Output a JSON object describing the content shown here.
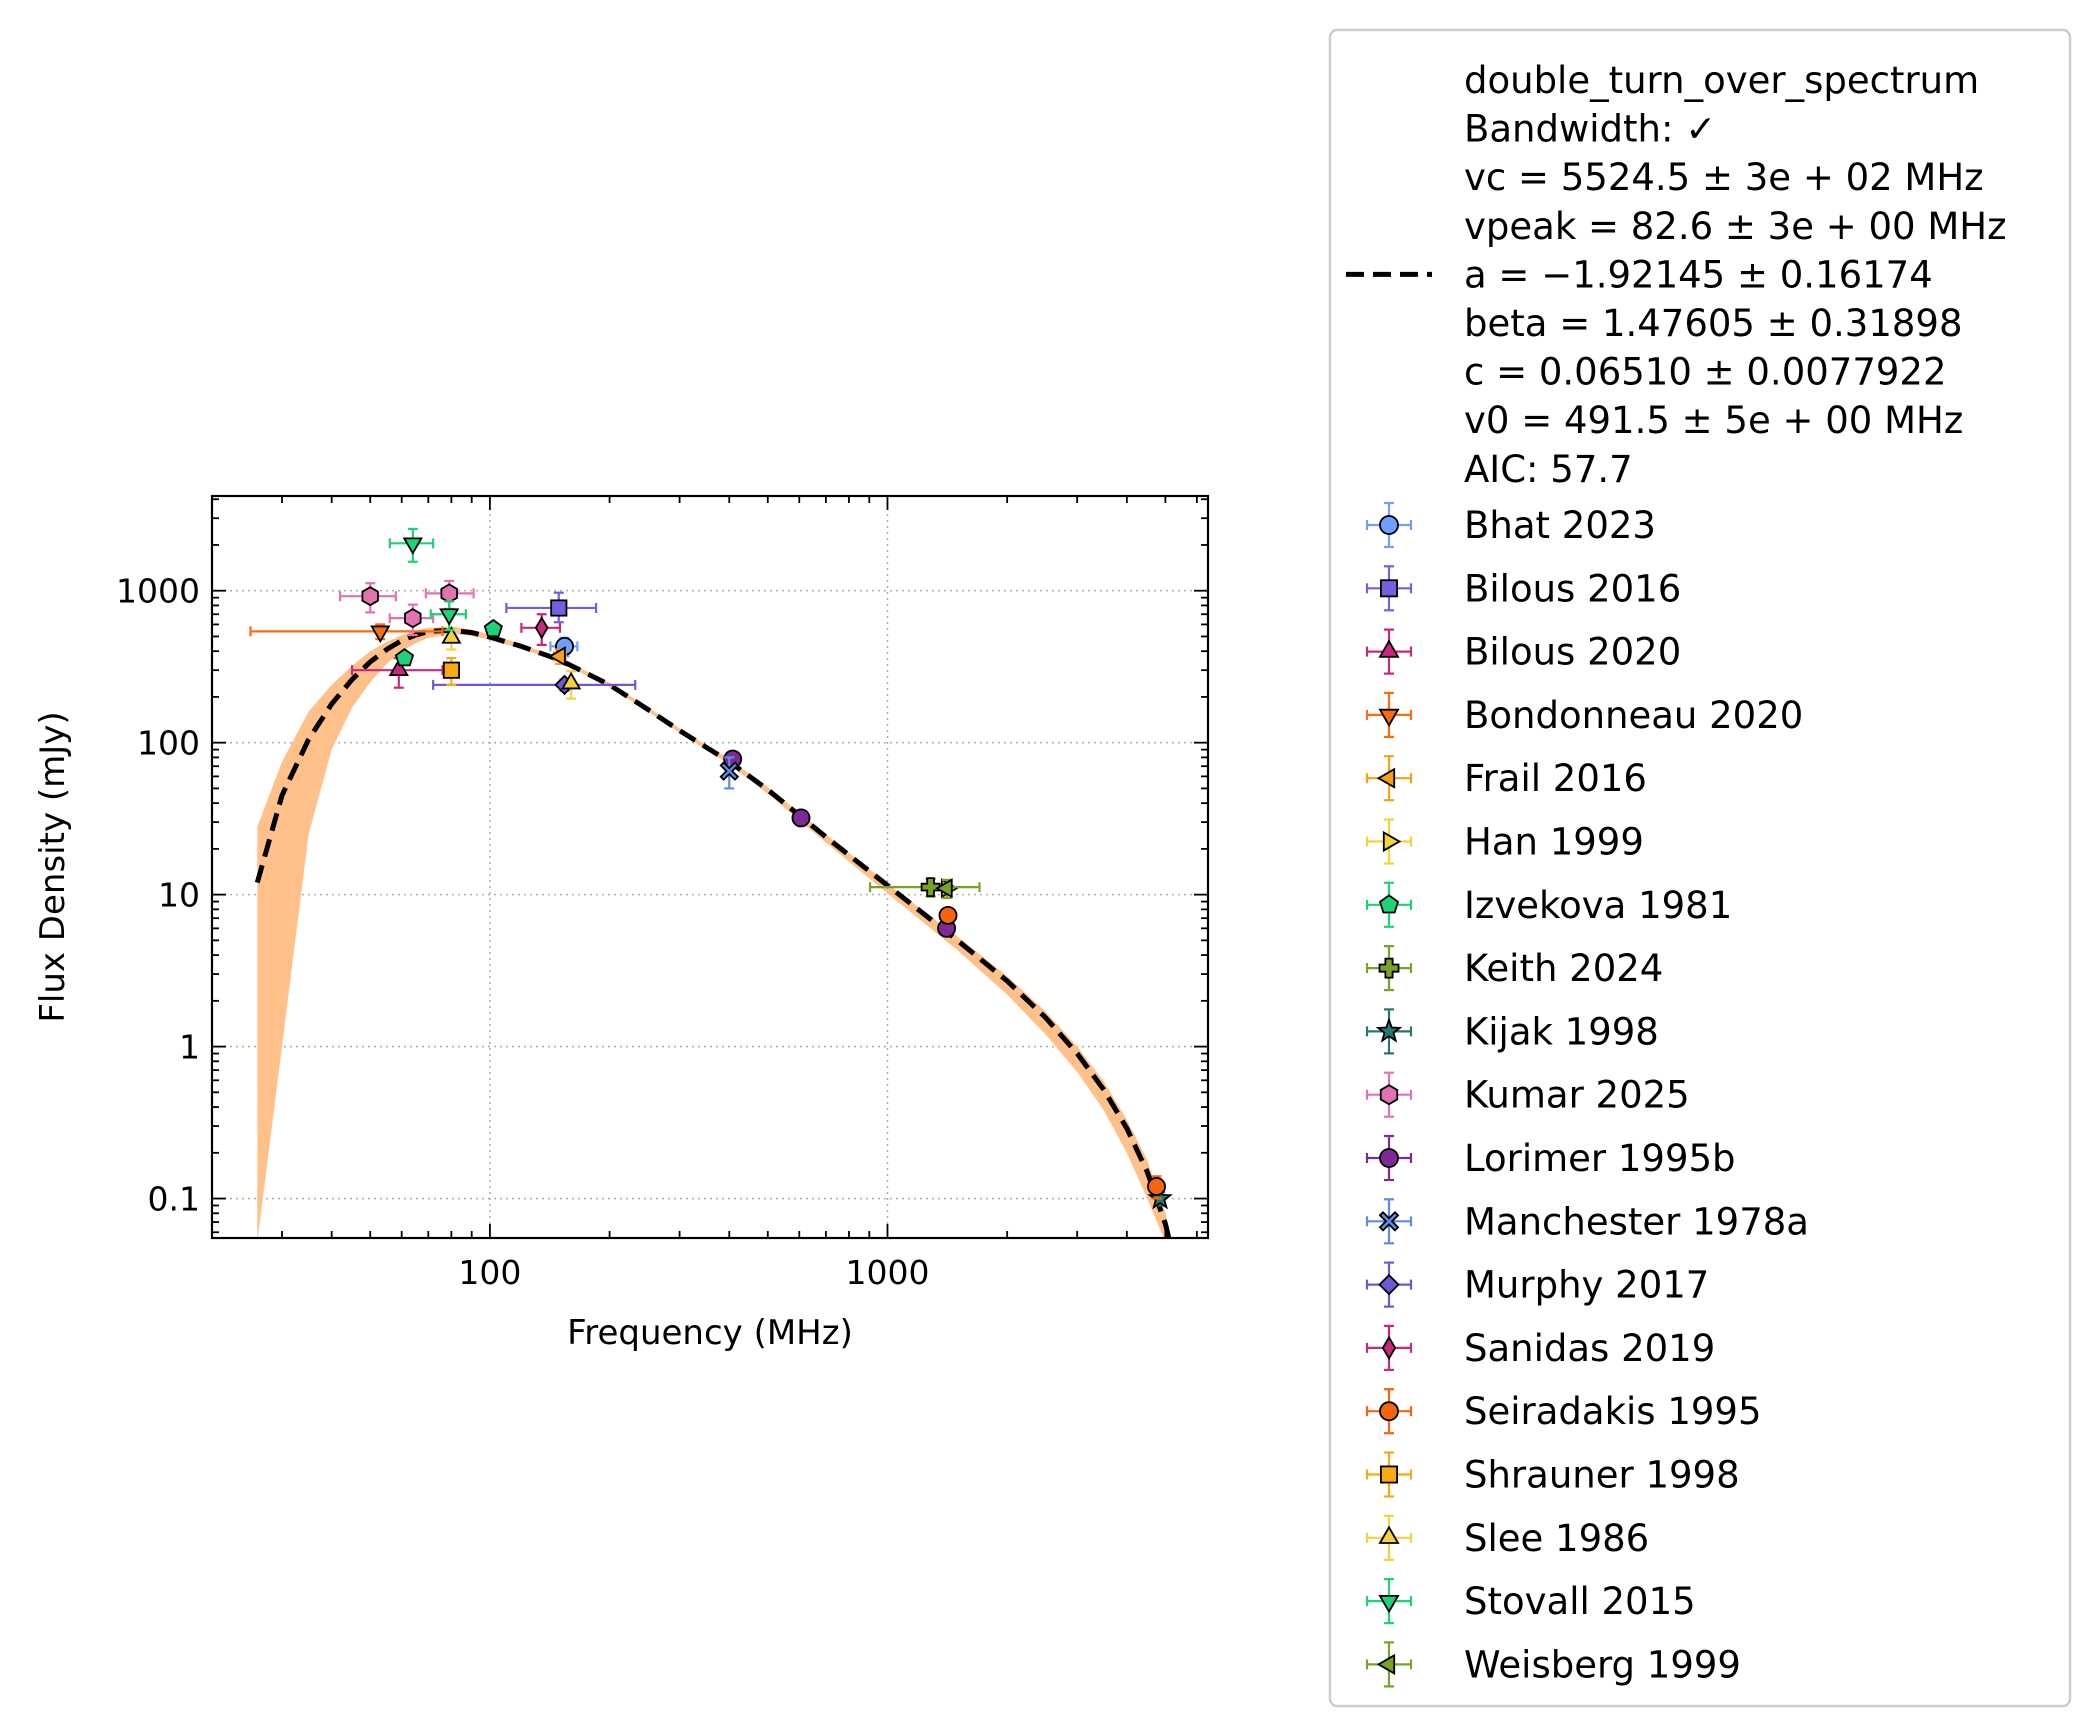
{
  "chart_data": {
    "type": "scatter",
    "title": "",
    "xlabel": "Frequency (MHz)",
    "ylabel": "Flux Density (mJy)",
    "xscale": "log",
    "yscale": "log",
    "xlim": [
      20,
      6400
    ],
    "ylim": [
      0.055,
      4200
    ],
    "xticks": [
      {
        "v": 100,
        "label": "100"
      },
      {
        "v": 1000,
        "label": "1000"
      }
    ],
    "yticks": [
      {
        "v": 0.1,
        "label": "0.1"
      },
      {
        "v": 1,
        "label": "1"
      },
      {
        "v": 10,
        "label": "10"
      },
      {
        "v": 100,
        "label": "100"
      },
      {
        "v": 1000,
        "label": "1000"
      }
    ],
    "grid": true,
    "legend_position": "outside right",
    "fit": {
      "name": "double_turn_over_spectrum",
      "line_style": "dashed",
      "line_color": "#000000",
      "band_color": "#ffc08a",
      "x": [
        26,
        30,
        35,
        40,
        45,
        50,
        55,
        60,
        65,
        70,
        80,
        90,
        100,
        120,
        150,
        200,
        250,
        300,
        400,
        500,
        700,
        1000,
        1500,
        2000,
        2500,
        3000,
        3500,
        4000,
        4500,
        5000,
        5100
      ],
      "y": [
        12,
        45,
        105,
        180,
        260,
        340,
        410,
        470,
        510,
        540,
        550,
        530,
        495,
        430,
        350,
        240,
        165,
        120,
        75,
        49,
        24,
        11.5,
        5.0,
        2.7,
        1.55,
        0.9,
        0.52,
        0.29,
        0.15,
        0.068,
        0.055
      ],
      "band_low": [
        0.01,
        1,
        25,
        90,
        170,
        250,
        330,
        400,
        450,
        490,
        520,
        505,
        475,
        415,
        340,
        232,
        160,
        116,
        72,
        46,
        22,
        10.2,
        4.3,
        2.2,
        1.2,
        0.68,
        0.38,
        0.2,
        0.1,
        0.045,
        0.04
      ],
      "band_high": [
        28,
        75,
        160,
        240,
        320,
        400,
        460,
        510,
        545,
        570,
        580,
        555,
        515,
        445,
        360,
        248,
        170,
        124,
        78,
        51,
        25,
        11.8,
        5.3,
        2.9,
        1.7,
        1.0,
        0.59,
        0.33,
        0.18,
        0.08,
        0.065
      ]
    },
    "fit_legend_lines": [
      "double_turn_over_spectrum",
      "Bandwidth: ✓",
      "vc = 5524.5 ± 3e + 02 MHz",
      "vpeak = 82.6 ± 3e + 00 MHz",
      "a = −1.92145 ± 0.16174",
      "beta = 1.47605 ± 0.31898",
      "c = 0.06510 ± 0.0077922",
      "v0 = 491.5 ± 5e + 00 MHz",
      "AIC: 57.7"
    ],
    "series": [
      {
        "name": "Bhat 2023",
        "marker": "circle",
        "color": "#6f9fff",
        "points": [
          {
            "x": 154,
            "y": 430,
            "xerr": [
              12,
              12
            ],
            "yerr": [
              60,
              60
            ]
          }
        ]
      },
      {
        "name": "Bilous 2016",
        "marker": "square",
        "color": "#7160e0",
        "points": [
          {
            "x": 149,
            "y": 770,
            "xerr": [
              39,
              36
            ],
            "yerr": [
              150,
              200
            ]
          }
        ]
      },
      {
        "name": "Bilous 2020",
        "marker": "triangle-up",
        "color": "#c8287c",
        "points": [
          {
            "x": 59,
            "y": 300,
            "xerr": [
              14,
              17
            ],
            "yerr": [
              70,
              60
            ]
          }
        ]
      },
      {
        "name": "Bondonneau 2020",
        "marker": "triangle-down",
        "color": "#f86d14",
        "points": [
          {
            "x": 53,
            "y": 540,
            "xerr": [
              28,
              23
            ],
            "yerr": [
              60,
              60
            ]
          }
        ]
      },
      {
        "name": "Frail 2016",
        "marker": "triangle-left",
        "color": "#f5a219",
        "points": [
          {
            "x": 150,
            "y": 370,
            "xerr": [
              5,
              5
            ],
            "yerr": [
              40,
              40
            ]
          }
        ]
      },
      {
        "name": "Han 1999",
        "marker": "triangle-right",
        "color": "#f5d23c",
        "points": [
          {
            "x": 1410,
            "y": 11,
            "xerr": [
              0,
              0
            ],
            "yerr": [
              1.5,
              1.5
            ]
          }
        ]
      },
      {
        "name": "Izvekova 1981",
        "marker": "pentagon",
        "color": "#1ed278",
        "points": [
          {
            "x": 61,
            "y": 360,
            "xerr": [
              0,
              0
            ],
            "yerr": [
              20,
              20
            ]
          },
          {
            "x": 102,
            "y": 560,
            "xerr": [
              0,
              0
            ],
            "yerr": [
              20,
              20
            ]
          }
        ]
      },
      {
        "name": "Keith 2024",
        "marker": "plus",
        "color": "#7aa228",
        "points": [
          {
            "x": 1284,
            "y": 11.2,
            "xerr": [
              380,
              420
            ],
            "yerr": [
              1.5,
              1.5
            ]
          }
        ]
      },
      {
        "name": "Kijak 1998",
        "marker": "star",
        "color": "#23796d",
        "points": [
          {
            "x": 4850,
            "y": 0.1,
            "xerr": [
              0,
              0
            ],
            "yerr": [
              0.01,
              0.01
            ]
          }
        ]
      },
      {
        "name": "Kumar 2025",
        "marker": "hexagon",
        "color": "#e073b0",
        "points": [
          {
            "x": 50,
            "y": 920,
            "xerr": [
              8,
              8
            ],
            "yerr": [
              200,
              200
            ]
          },
          {
            "x": 64,
            "y": 660,
            "xerr": [
              8,
              8
            ],
            "yerr": [
              150,
              150
            ]
          },
          {
            "x": 79,
            "y": 960,
            "xerr": [
              10,
              12
            ],
            "yerr": [
              200,
              200
            ]
          }
        ]
      },
      {
        "name": "Lorimer 1995b",
        "marker": "octagon",
        "color": "#7d2a96",
        "points": [
          {
            "x": 408,
            "y": 78,
            "xerr": [
              0,
              0
            ],
            "yerr": [
              5,
              5
            ]
          },
          {
            "x": 606,
            "y": 32,
            "xerr": [
              0,
              0
            ],
            "yerr": [
              2,
              2
            ]
          },
          {
            "x": 1408,
            "y": 6,
            "xerr": [
              0,
              0
            ],
            "yerr": [
              0.4,
              0.4
            ]
          }
        ]
      },
      {
        "name": "Manchester 1978a",
        "marker": "x",
        "color": "#5c8de0",
        "points": [
          {
            "x": 400,
            "y": 65,
            "xerr": [
              0,
              0
            ],
            "yerr": [
              15,
              15
            ]
          }
        ]
      },
      {
        "name": "Murphy 2017",
        "marker": "diamond",
        "color": "#6e58d4",
        "points": [
          {
            "x": 154,
            "y": 240,
            "xerr": [
              82,
              78
            ],
            "yerr": [
              20,
              20
            ]
          }
        ]
      },
      {
        "name": "Sanidas 2019",
        "marker": "thin-diamond",
        "color": "#c8287c",
        "points": [
          {
            "x": 135,
            "y": 570,
            "xerr": [
              15,
              15
            ],
            "yerr": [
              130,
              130
            ]
          }
        ]
      },
      {
        "name": "Seiradakis 1995",
        "marker": "circle",
        "color": "#f8640c",
        "points": [
          {
            "x": 1420,
            "y": 7.3,
            "xerr": [
              0,
              0
            ],
            "yerr": [
              0.6,
              0.6
            ]
          },
          {
            "x": 4750,
            "y": 0.12,
            "xerr": [
              0,
              0
            ],
            "yerr": [
              0.02,
              0.02
            ]
          }
        ]
      },
      {
        "name": "Shrauner 1998",
        "marker": "square",
        "color": "#f8aa14",
        "points": [
          {
            "x": 80,
            "y": 300,
            "xerr": [
              0,
              0
            ],
            "yerr": [
              60,
              60
            ]
          }
        ]
      },
      {
        "name": "Slee 1986",
        "marker": "triangle-up",
        "color": "#f5d23c",
        "points": [
          {
            "x": 80,
            "y": 490,
            "xerr": [
              0,
              0
            ],
            "yerr": [
              80,
              80
            ]
          },
          {
            "x": 160,
            "y": 245,
            "xerr": [
              0,
              0
            ],
            "yerr": [
              50,
              50
            ]
          }
        ]
      },
      {
        "name": "Stovall 2015",
        "marker": "triangle-down",
        "color": "#1ed278",
        "points": [
          {
            "x": 64,
            "y": 2050,
            "xerr": [
              8,
              8
            ],
            "yerr": [
              500,
              500
            ]
          },
          {
            "x": 79,
            "y": 700,
            "xerr": [
              8,
              8
            ],
            "yerr": [
              150,
              150
            ]
          }
        ]
      },
      {
        "name": "Weisberg 1999",
        "marker": "triangle-left",
        "color": "#7aa228",
        "points": [
          {
            "x": 1410,
            "y": 11,
            "xerr": [
              0,
              0
            ],
            "yerr": [
              1.5,
              1.5
            ]
          }
        ]
      }
    ]
  }
}
